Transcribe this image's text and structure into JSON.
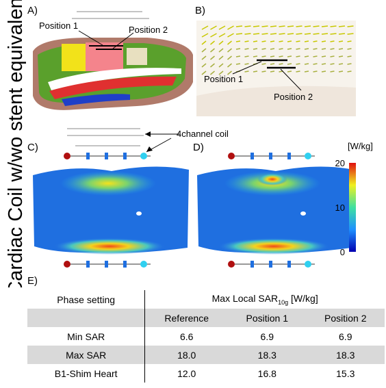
{
  "side_label": "Cardiac Coil w/wo stent equivalent",
  "panels": {
    "a": {
      "label": "A)",
      "annotations": [
        "Position 1",
        "Position 2"
      ]
    },
    "b": {
      "label": "B)",
      "annotations": [
        "Position 1",
        "Position 2"
      ]
    },
    "c": {
      "label": "C)",
      "annotation": "4channel coil"
    },
    "d": {
      "label": "D)"
    },
    "colorbar": {
      "unit": "[W/kg]",
      "ticks": [
        0,
        10,
        20
      ]
    },
    "e": {
      "label": "E)"
    }
  },
  "table": {
    "header": {
      "first": "Phase setting",
      "group": "Max Local SAR",
      "group_sub": "10g",
      "group_unit": "[W/kg]"
    },
    "columns": [
      "Reference",
      "Position 1",
      "Position 2"
    ],
    "rows": [
      [
        "Min SAR",
        "6.6",
        "6.9",
        "6.9"
      ],
      [
        "Max SAR",
        "18.0",
        "18.3",
        "18.3"
      ],
      [
        "B1-Shim Heart",
        "12.0",
        "16.8",
        "15.3"
      ]
    ]
  }
}
